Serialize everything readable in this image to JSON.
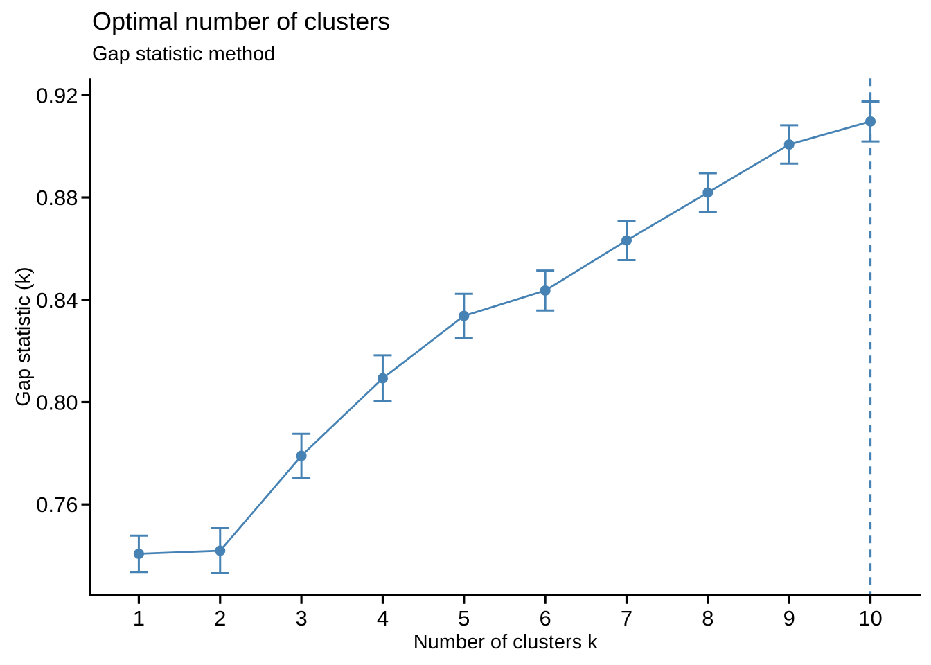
{
  "chart_data": {
    "type": "line",
    "title": "Optimal number of clusters",
    "subtitle": "Gap statistic method",
    "xlabel": "Number of clusters k",
    "ylabel": "Gap statistic (k)",
    "x": [
      1,
      2,
      3,
      4,
      5,
      6,
      7,
      8,
      9,
      10
    ],
    "x_tick_labels": [
      "1",
      "2",
      "3",
      "4",
      "5",
      "6",
      "7",
      "8",
      "9",
      "10"
    ],
    "series": [
      {
        "name": "Gap statistic",
        "values": [
          0.7407,
          0.7419,
          0.779,
          0.8093,
          0.8337,
          0.8436,
          0.8632,
          0.8819,
          0.9007,
          0.9097
        ],
        "se": [
          0.0071,
          0.0088,
          0.0086,
          0.009,
          0.0086,
          0.0078,
          0.0077,
          0.0076,
          0.0075,
          0.0078
        ]
      }
    ],
    "error_bars": true,
    "y_ticks": [
      0.76,
      0.8,
      0.84,
      0.88,
      0.92
    ],
    "y_tick_labels": [
      "0.76",
      "0.80",
      "0.84",
      "0.88",
      "0.92"
    ],
    "xlim": [
      0.4,
      10.62
    ],
    "ylim": [
      0.7245,
      0.9265
    ],
    "vline": {
      "x": 10,
      "style": "dashed"
    },
    "grid": false,
    "legend": "none",
    "colors": {
      "accent": "#4682B4",
      "axis": "#000000",
      "text": "#000000",
      "background": "#ffffff"
    }
  }
}
